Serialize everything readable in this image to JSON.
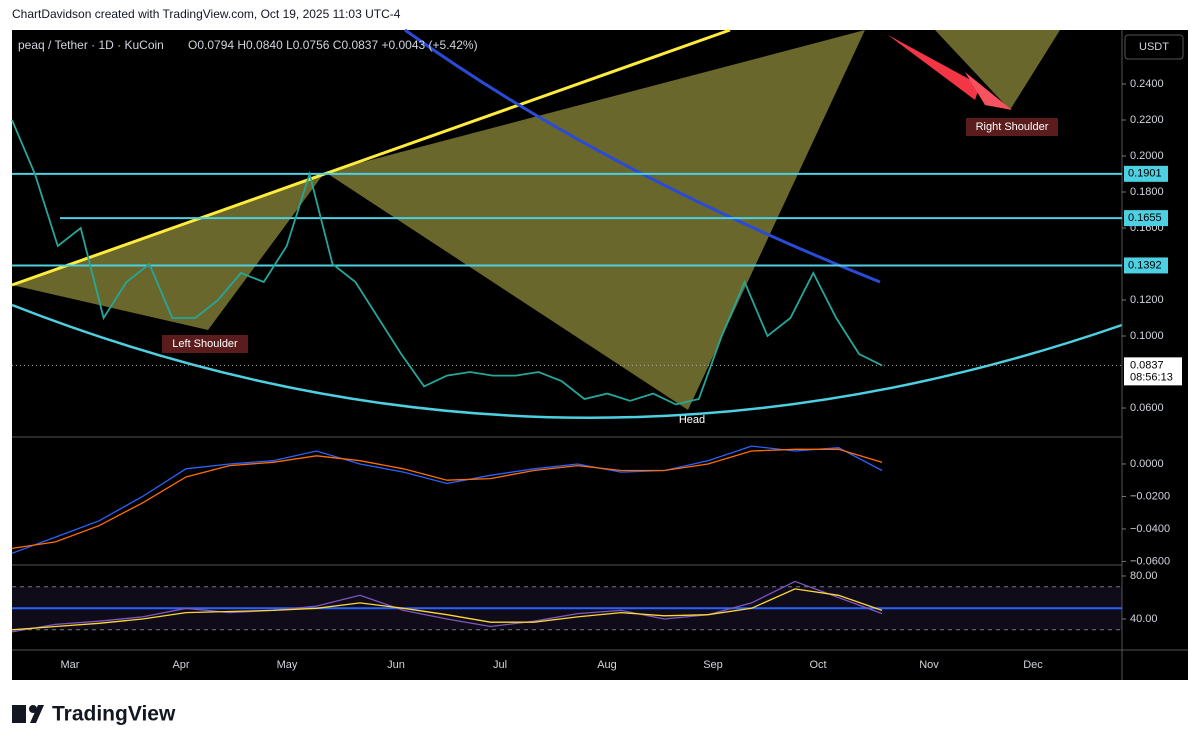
{
  "header": {
    "credit": "ChartDavidson created with TradingView.com, Oct 19, 2025 11:03 UTC-4",
    "legend": "peaq / Tether · 1D · KuCoin",
    "ohlc": "O0.0794 H0.0840 L0.0756 C0.0837 +0.0043 (+5.42%)"
  },
  "currency": "USDT",
  "annotations": [
    "Left Shoulder",
    "Head",
    "Right Shoulder"
  ],
  "countdown": "08:56:13",
  "brand": "TradingView",
  "chart_data": [
    {
      "type": "line",
      "months": [
        "Mar",
        "Apr",
        "May",
        "Jun",
        "Jul",
        "Aug",
        "Sep",
        "Oct",
        "Nov",
        "Dec"
      ],
      "ylim": [
        0.0439,
        0.27
      ],
      "yticks": [
        {
          "value": 0.06,
          "label": "0.0600"
        },
        {
          "value": 0.1,
          "label": "0.1000"
        },
        {
          "value": 0.12,
          "label": "0.1200"
        },
        {
          "value": 0.16,
          "label": "0.1600"
        },
        {
          "value": 0.18,
          "label": "0.1800"
        },
        {
          "value": 0.2,
          "label": "0.2000"
        },
        {
          "value": 0.22,
          "label": "0.2200"
        },
        {
          "value": 0.24,
          "label": "0.2400"
        }
      ],
      "levels": [
        0.1901,
        0.1655,
        0.1392
      ],
      "last_price": 0.0837,
      "series": [
        {
          "color": "#26a69a",
          "values": [
            0.22,
            0.19,
            0.15,
            0.16,
            0.11,
            0.13,
            0.14,
            0.11,
            0.11,
            0.12,
            0.135,
            0.13,
            0.15,
            0.19,
            0.14,
            0.13,
            0.11,
            0.09,
            0.072,
            0.078,
            0.08,
            0.078,
            0.078,
            0.08,
            0.075,
            0.065,
            0.068,
            0.064,
            0.068,
            0.062,
            0.065,
            0.1,
            0.13,
            0.1,
            0.11,
            0.135,
            0.11,
            0.09,
            0.0837
          ]
        }
      ]
    },
    {
      "type": "line",
      "ylim": [
        -0.0622,
        0.0166
      ],
      "yticks": [
        {
          "value": 0,
          "label": "0.0000"
        },
        {
          "value": -0.02,
          "label": "−0.0200"
        },
        {
          "value": -0.04,
          "label": "−0.0400"
        },
        {
          "value": -0.06,
          "label": "−0.0600"
        }
      ],
      "series": [
        {
          "color": "#2962ff",
          "values": [
            -0.055,
            -0.045,
            -0.035,
            -0.02,
            -0.003,
            0.0,
            0.002,
            0.008,
            0.0,
            -0.005,
            -0.012,
            -0.007,
            -0.003,
            0.0,
            -0.005,
            -0.004,
            0.002,
            0.011,
            0.008,
            0.01,
            -0.004
          ]
        },
        {
          "color": "#ff6d00",
          "values": [
            -0.052,
            -0.048,
            -0.038,
            -0.024,
            -0.008,
            -0.001,
            0.001,
            0.005,
            0.002,
            -0.003,
            -0.01,
            -0.009,
            -0.004,
            -0.001,
            -0.004,
            -0.004,
            0.0,
            0.008,
            0.009,
            0.009,
            0.001
          ]
        }
      ]
    },
    {
      "type": "line",
      "ylim": [
        11.2,
        90.2
      ],
      "yticks": [
        {
          "value": 80,
          "label": "80.00"
        },
        {
          "value": 40,
          "label": "40.00"
        }
      ],
      "bands": [
        70,
        30
      ],
      "midline": 50,
      "series": [
        {
          "color": "#7e57c2",
          "values": [
            28,
            35,
            38,
            42,
            50,
            46,
            48,
            52,
            62,
            48,
            40,
            33,
            38,
            45,
            48,
            40,
            44,
            55,
            75,
            60,
            45
          ]
        },
        {
          "color": "#fdd835",
          "values": [
            30,
            33,
            36,
            40,
            46,
            47,
            48,
            50,
            55,
            50,
            44,
            37,
            37,
            42,
            46,
            43,
            44,
            50,
            68,
            62,
            48
          ]
        }
      ]
    }
  ]
}
